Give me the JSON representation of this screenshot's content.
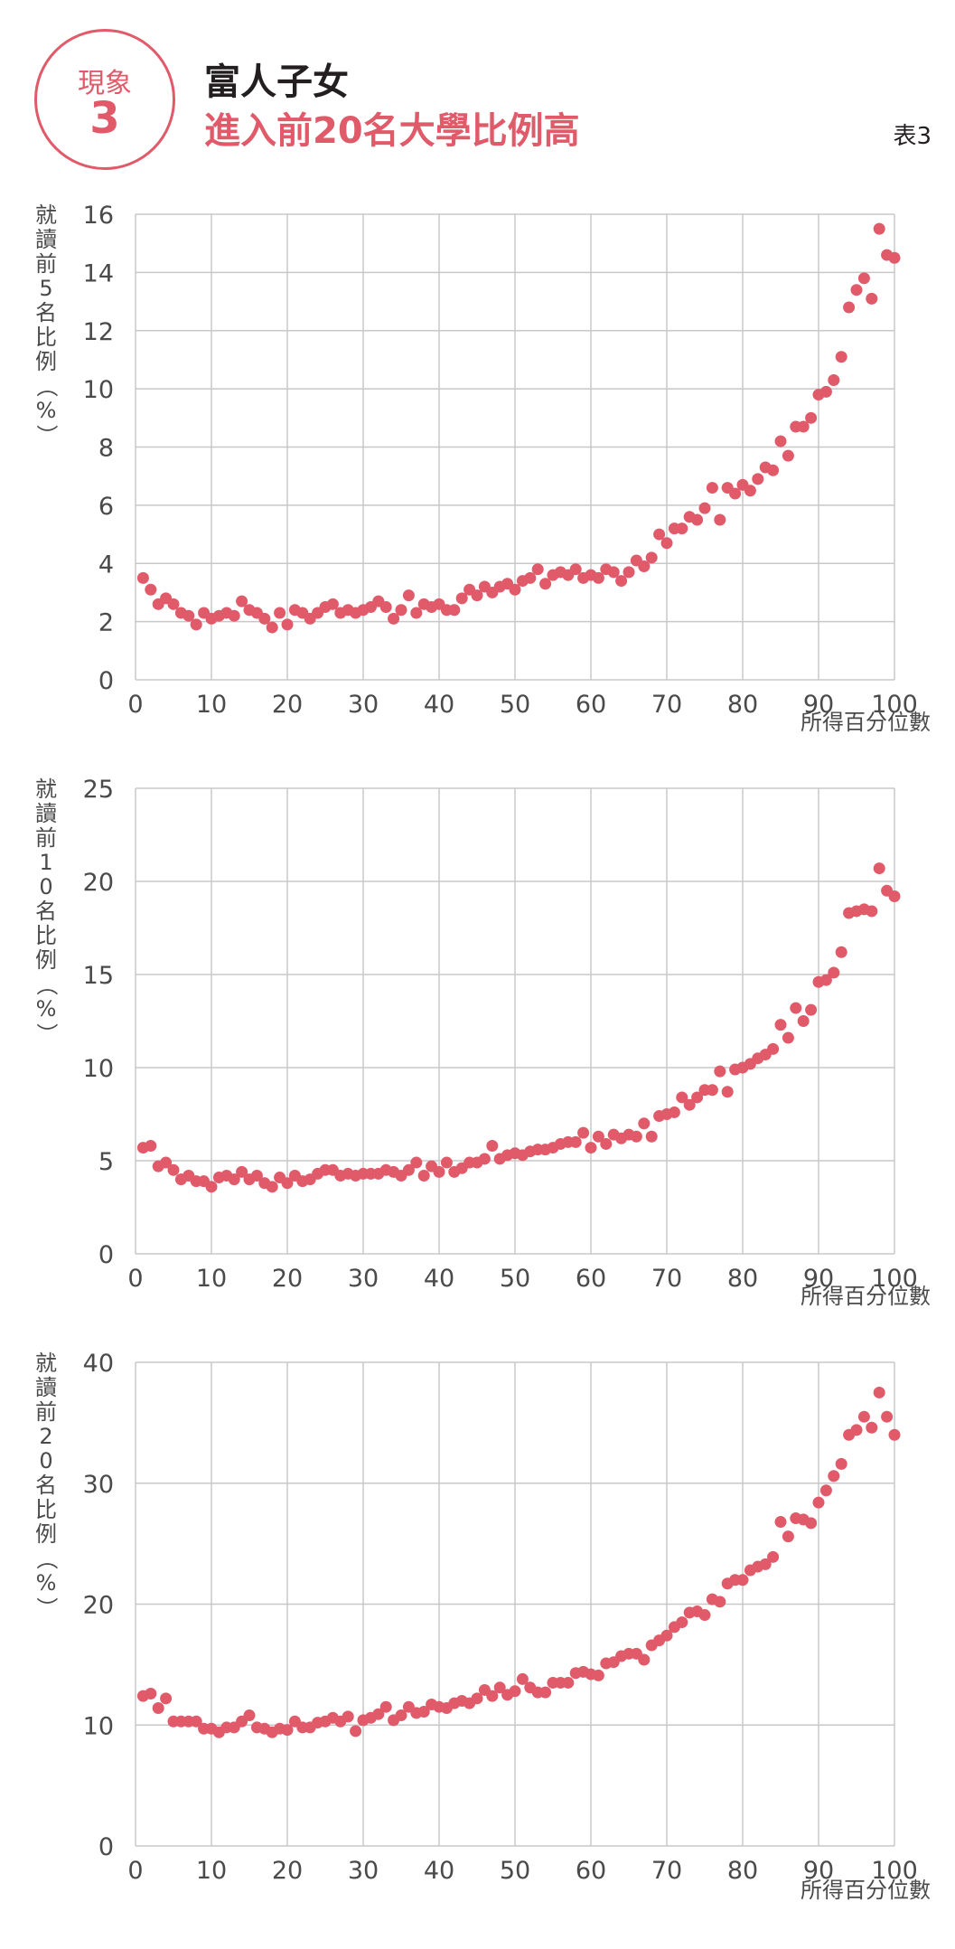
{
  "header": {
    "badge_label": "現象",
    "badge_number": "3",
    "title_line1": "富人子女",
    "title_line2": "進入前20名大學比例高",
    "table_label": "表3"
  },
  "colors": {
    "accent": "#e05a6a",
    "point": "#e05a6a",
    "grid": "#c8c8c8",
    "text": "#231f20"
  },
  "chart_data": [
    {
      "type": "scatter",
      "ylabel": "就讀前5名比例（%）",
      "xlabel": "所得百分位數",
      "xlim": [
        0,
        100
      ],
      "ylim": [
        0,
        16
      ],
      "xticks": [
        0,
        10,
        20,
        30,
        40,
        50,
        60,
        70,
        80,
        90,
        100
      ],
      "yticks": [
        0,
        2,
        4,
        6,
        8,
        10,
        12,
        14,
        16
      ],
      "grid": true,
      "y": [
        3.5,
        3.1,
        2.6,
        2.8,
        2.6,
        2.3,
        2.2,
        1.9,
        2.3,
        2.1,
        2.2,
        2.3,
        2.2,
        2.7,
        2.4,
        2.3,
        2.1,
        1.8,
        2.3,
        1.9,
        2.4,
        2.3,
        2.1,
        2.3,
        2.5,
        2.6,
        2.3,
        2.4,
        2.3,
        2.4,
        2.5,
        2.7,
        2.5,
        2.1,
        2.4,
        2.9,
        2.3,
        2.6,
        2.5,
        2.6,
        2.4,
        2.4,
        2.8,
        3.1,
        2.9,
        3.2,
        3.0,
        3.2,
        3.3,
        3.1,
        3.4,
        3.5,
        3.8,
        3.3,
        3.6,
        3.7,
        3.6,
        3.8,
        3.5,
        3.6,
        3.5,
        3.8,
        3.7,
        3.4,
        3.7,
        4.1,
        3.9,
        4.2,
        5.0,
        4.7,
        5.2,
        5.2,
        5.6,
        5.5,
        5.9,
        6.6,
        5.5,
        6.6,
        6.4,
        6.7,
        6.5,
        6.9,
        7.3,
        7.2,
        8.2,
        7.7,
        8.7,
        8.7,
        9.0,
        9.8,
        9.9,
        10.3,
        11.1,
        12.8,
        13.4,
        13.8,
        13.1,
        15.5,
        14.6,
        14.5
      ]
    },
    {
      "type": "scatter",
      "ylabel": "就讀前10名比例（%）",
      "xlabel": "所得百分位數",
      "xlim": [
        0,
        100
      ],
      "ylim": [
        0,
        25
      ],
      "xticks": [
        0,
        10,
        20,
        30,
        40,
        50,
        60,
        70,
        80,
        90,
        100
      ],
      "yticks": [
        0,
        5,
        10,
        15,
        20,
        25
      ],
      "grid": true,
      "y": [
        5.7,
        5.8,
        4.7,
        4.9,
        4.5,
        4.0,
        4.2,
        3.9,
        3.9,
        3.6,
        4.1,
        4.2,
        4.0,
        4.4,
        4.0,
        4.2,
        3.8,
        3.6,
        4.1,
        3.8,
        4.2,
        3.9,
        4.0,
        4.3,
        4.5,
        4.5,
        4.2,
        4.3,
        4.2,
        4.3,
        4.3,
        4.3,
        4.5,
        4.4,
        4.2,
        4.5,
        4.9,
        4.2,
        4.7,
        4.4,
        4.9,
        4.4,
        4.6,
        4.9,
        4.9,
        5.1,
        5.8,
        5.1,
        5.3,
        5.4,
        5.3,
        5.5,
        5.6,
        5.6,
        5.7,
        5.9,
        6.0,
        6.0,
        6.5,
        5.7,
        6.3,
        5.9,
        6.4,
        6.2,
        6.4,
        6.3,
        7.0,
        6.3,
        7.4,
        7.5,
        7.6,
        8.4,
        8.0,
        8.4,
        8.8,
        8.8,
        9.8,
        8.7,
        9.9,
        10.0,
        10.2,
        10.5,
        10.7,
        11.0,
        12.3,
        11.6,
        13.2,
        12.5,
        13.1,
        14.6,
        14.7,
        15.1,
        16.2,
        18.3,
        18.4,
        18.5,
        18.4,
        20.7,
        19.5,
        19.2
      ]
    },
    {
      "type": "scatter",
      "ylabel": "就讀前20名比例（%）",
      "xlabel": "所得百分位數",
      "xlim": [
        0,
        100
      ],
      "ylim": [
        0,
        40
      ],
      "xticks": [
        0,
        10,
        20,
        30,
        40,
        50,
        60,
        70,
        80,
        90,
        100
      ],
      "yticks": [
        0,
        10,
        20,
        30,
        40
      ],
      "grid": true,
      "y": [
        12.4,
        12.6,
        11.4,
        12.2,
        10.3,
        10.3,
        10.3,
        10.3,
        9.7,
        9.7,
        9.4,
        9.8,
        9.8,
        10.3,
        10.8,
        9.8,
        9.7,
        9.4,
        9.7,
        9.6,
        10.3,
        9.8,
        9.8,
        10.2,
        10.3,
        10.6,
        10.3,
        10.7,
        9.5,
        10.4,
        10.6,
        10.9,
        11.5,
        10.4,
        10.8,
        11.5,
        11.0,
        11.1,
        11.7,
        11.5,
        11.4,
        11.8,
        12.0,
        11.8,
        12.2,
        12.9,
        12.4,
        13.1,
        12.5,
        12.8,
        13.8,
        13.1,
        12.7,
        12.7,
        13.5,
        13.5,
        13.5,
        14.3,
        14.4,
        14.2,
        14.1,
        15.1,
        15.2,
        15.7,
        15.9,
        15.9,
        15.4,
        16.6,
        17.0,
        17.4,
        18.1,
        18.5,
        19.3,
        19.4,
        19.1,
        20.4,
        20.2,
        21.7,
        22.0,
        22.0,
        22.8,
        23.1,
        23.3,
        23.9,
        26.8,
        25.6,
        27.1,
        27.0,
        26.7,
        28.4,
        29.4,
        30.6,
        31.6,
        34.0,
        34.4,
        35.5,
        34.6,
        37.5,
        35.5,
        34.0
      ]
    }
  ]
}
